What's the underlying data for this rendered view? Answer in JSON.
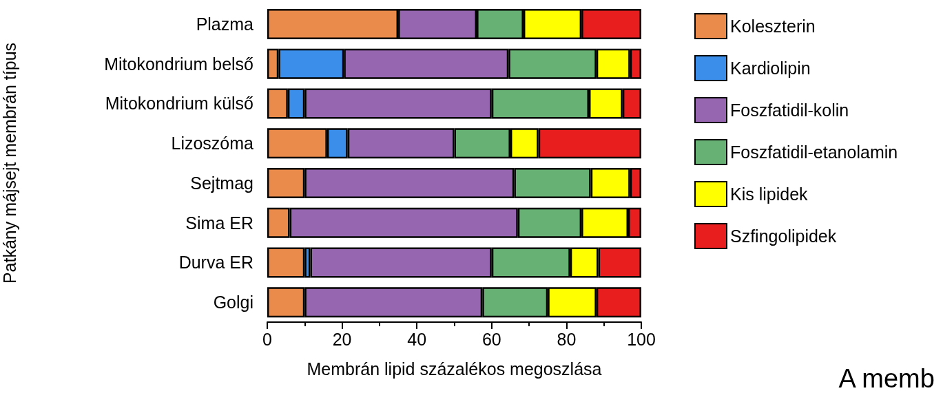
{
  "chart_data": {
    "type": "bar",
    "orientation": "horizontal",
    "stacked": true,
    "xlabel": "Membrán lipid százalékos megoszlása",
    "ylabel": "Patkány májsejt membrán típus",
    "categories": [
      "Plazma",
      "Mitokondrium belső",
      "Mitokondrium külső",
      "Lizoszóma",
      "Sejtmag",
      "Sima ER",
      "Durva ER",
      "Golgi"
    ],
    "series": [
      {
        "name": "Koleszterin",
        "color": "#eb8b4b",
        "values": [
          35,
          3,
          5.5,
          16,
          10,
          6,
          10,
          10
        ]
      },
      {
        "name": "Kardiolipin",
        "color": "#3b8eea",
        "values": [
          0,
          17.5,
          4.5,
          5.5,
          0,
          0,
          1.5,
          0
        ]
      },
      {
        "name": "Foszfatidil-kolin",
        "color": "#9666b0",
        "values": [
          21,
          44,
          50,
          28.5,
          56,
          61,
          48.5,
          47.5
        ]
      },
      {
        "name": "Foszfatidil-etanolamin",
        "color": "#66b173",
        "values": [
          12.5,
          23.5,
          26,
          15,
          20.5,
          17,
          21,
          17.5
        ]
      },
      {
        "name": "Kis lipidek",
        "color": "#ffff00",
        "values": [
          15.5,
          9,
          9,
          7.5,
          10.5,
          12.5,
          7.5,
          13
        ]
      },
      {
        "name": "Szfingolipidek",
        "color": "#e81e1e",
        "values": [
          16,
          3,
          5,
          27.5,
          3,
          3.5,
          11.5,
          12
        ]
      }
    ],
    "xlim": [
      0,
      100
    ],
    "xticks": [
      0,
      20,
      40,
      60,
      80,
      100
    ],
    "grid": false,
    "legend": "right",
    "annotations": [
      "A memb"
    ]
  }
}
